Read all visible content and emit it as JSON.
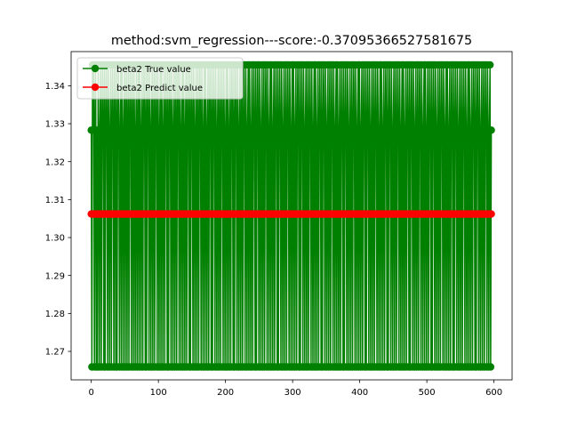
{
  "chart_data": {
    "type": "line",
    "title": "method:svm_regression---score:-0.37095366527581675",
    "xlabel": "",
    "ylabel": "",
    "xlim": [
      -30,
      627
    ],
    "ylim": [
      1.2625,
      1.349
    ],
    "x_ticks": [
      0,
      100,
      200,
      300,
      400,
      500,
      600
    ],
    "x_tick_labels": [
      "0",
      "100",
      "200",
      "300",
      "400",
      "500",
      "600"
    ],
    "y_ticks": [
      1.27,
      1.28,
      1.29,
      1.3,
      1.31,
      1.32,
      1.33,
      1.34
    ],
    "y_tick_labels": [
      "1.27",
      "1.28",
      "1.29",
      "1.30",
      "1.31",
      "1.32",
      "1.33",
      "1.34"
    ],
    "grid": false,
    "legend_position": "upper left",
    "true_levels": [
      1.2659,
      1.3283,
      1.3455
    ],
    "series": [
      {
        "name": "beta2 True value",
        "color": "#008000",
        "marker": "circle",
        "x_start": 0,
        "x_end": 596,
        "values": [
          1.3283,
          1.2659,
          1.3455,
          1.3283,
          1.3455,
          1.2659,
          1.3283,
          1.3455,
          1.2659,
          1.3283,
          1.2659,
          1.3455,
          1.3283,
          1.2659,
          1.3283,
          1.3455,
          1.2659,
          1.3283,
          1.3455,
          1.3283,
          1.2659,
          1.3455,
          1.2659,
          1.3283,
          1.3455,
          1.3283,
          1.2659,
          1.3455,
          1.3283,
          1.2659,
          1.3283,
          1.3455,
          1.2659,
          1.3283,
          1.3455,
          1.3283,
          1.2659,
          1.3455,
          1.3283,
          1.2659,
          1.3455,
          1.2659,
          1.3283,
          1.3455,
          1.3283,
          1.2659,
          1.3283,
          1.3455,
          1.2659,
          1.3455,
          1.3283,
          1.2659,
          1.3283,
          1.3455,
          1.2659,
          1.3283,
          1.3455,
          1.2659,
          1.3283,
          1.3455,
          1.2659,
          1.3283,
          1.3455,
          1.3283,
          1.2659,
          1.3455,
          1.3283,
          1.2659,
          1.3455,
          1.3283,
          1.2659,
          1.3283,
          1.3455,
          1.2659,
          1.3283,
          1.3455,
          1.2659,
          1.3455,
          1.3283,
          1.2659,
          1.3283,
          1.3455,
          1.2659,
          1.3283,
          1.3455,
          1.3283,
          1.2659,
          1.3455,
          1.2659,
          1.3283,
          1.3455,
          1.3283,
          1.2659,
          1.3455,
          1.3283,
          1.2659,
          1.3283,
          1.3455,
          1.2659,
          1.3283,
          1.3455,
          1.2659,
          1.3283,
          1.3455,
          1.3283,
          1.2659,
          1.3455,
          1.3283,
          1.2659,
          1.3283,
          1.3455,
          1.2659,
          1.3455,
          1.3283,
          1.2659,
          1.3283,
          1.3455,
          1.2659,
          1.3283,
          1.3455,
          1.3283,
          1.2659,
          1.3455,
          1.2659,
          1.3283,
          1.3455,
          1.3283,
          1.2659,
          1.3455,
          1.3283,
          1.2659,
          1.3283,
          1.3455,
          1.2659,
          1.3283,
          1.3455,
          1.2659,
          1.3283,
          1.3455,
          1.3283,
          1.2659,
          1.3455,
          1.3283,
          1.2659,
          1.3283,
          1.3455,
          1.2659,
          1.3455,
          1.3283,
          1.2659,
          1.3283,
          1.3455,
          1.2659,
          1.3283,
          1.3455,
          1.3283,
          1.2659,
          1.3455,
          1.2659,
          1.3283,
          1.3455,
          1.3283,
          1.2659,
          1.3455,
          1.3283,
          1.2659,
          1.3283,
          1.3455,
          1.2659,
          1.3283,
          1.3455,
          1.2659,
          1.3283,
          1.3455,
          1.3283,
          1.2659,
          1.3455,
          1.3283,
          1.2659,
          1.3283,
          1.3455,
          1.2659,
          1.3455,
          1.3283,
          1.2659,
          1.3283,
          1.3455,
          1.2659,
          1.3283,
          1.3455,
          1.3283,
          1.2659,
          1.3455,
          1.2659,
          1.3283,
          1.3455,
          1.3283,
          1.2659,
          1.3455,
          1.3283,
          1.2659,
          1.3283,
          1.3455,
          1.2659,
          1.3283,
          1.3455,
          1.2659,
          1.3283,
          1.3455,
          1.3283,
          1.2659,
          1.3455,
          1.3283,
          1.2659,
          1.3283,
          1.3455,
          1.2659,
          1.3455,
          1.3283,
          1.2659,
          1.3283,
          1.3455,
          1.2659,
          1.3283,
          1.3455,
          1.3283,
          1.2659,
          1.3455,
          1.2659,
          1.3283,
          1.3455,
          1.3283,
          1.2659,
          1.3455,
          1.3283,
          1.2659,
          1.3283,
          1.3455,
          1.2659,
          1.3283,
          1.3455,
          1.2659,
          1.3283,
          1.3455,
          1.3283,
          1.2659,
          1.3455,
          1.3283,
          1.2659,
          1.3283,
          1.3455,
          1.2659,
          1.3455,
          1.3283,
          1.2659,
          1.3283,
          1.3455,
          1.2659,
          1.3283,
          1.3455,
          1.3283,
          1.2659,
          1.3455,
          1.2659,
          1.3283,
          1.3455,
          1.3283,
          1.2659,
          1.3455,
          1.3283,
          1.2659,
          1.3283,
          1.3455,
          1.2659,
          1.3283,
          1.3455,
          1.2659,
          1.3283,
          1.3455,
          1.3283,
          1.2659,
          1.3455,
          1.3283,
          1.2659,
          1.3283,
          1.3455,
          1.2659,
          1.3455,
          1.3283,
          1.2659,
          1.3283,
          1.3455,
          1.2659,
          1.3283,
          1.3455,
          1.3283,
          1.2659,
          1.3455,
          1.2659,
          1.3283,
          1.3455,
          1.3283,
          1.2659,
          1.3455,
          1.3283,
          1.2659,
          1.3283,
          1.3455,
          1.2659,
          1.3283,
          1.3455,
          1.2659,
          1.3283,
          1.3455,
          1.3283,
          1.2659,
          1.3455,
          1.3283,
          1.2659,
          1.3283,
          1.3455,
          1.2659,
          1.3455,
          1.3283,
          1.2659,
          1.3283,
          1.3455,
          1.2659,
          1.3283,
          1.3455,
          1.3283,
          1.2659,
          1.3455,
          1.2659,
          1.3283,
          1.3455,
          1.3283,
          1.2659,
          1.3455,
          1.3283,
          1.2659,
          1.3283,
          1.3455,
          1.2659,
          1.3283,
          1.3455,
          1.2659,
          1.3283,
          1.3455,
          1.3283,
          1.2659,
          1.3455,
          1.3283,
          1.2659,
          1.3283,
          1.3455,
          1.2659,
          1.3455,
          1.3283,
          1.2659,
          1.3283,
          1.3455,
          1.2659,
          1.3283,
          1.3455,
          1.3283,
          1.2659,
          1.3455,
          1.2659,
          1.3283,
          1.3455,
          1.3283,
          1.2659,
          1.3455,
          1.3283,
          1.2659,
          1.3283,
          1.3455,
          1.2659,
          1.3283,
          1.3455,
          1.2659,
          1.3283,
          1.3455,
          1.3283,
          1.2659,
          1.3455,
          1.3283,
          1.2659,
          1.3283,
          1.3455,
          1.2659,
          1.3455,
          1.3283,
          1.2659,
          1.3283,
          1.3455,
          1.2659,
          1.3283,
          1.3455,
          1.3283,
          1.2659,
          1.3455,
          1.2659,
          1.3283,
          1.3455,
          1.3283,
          1.2659,
          1.3455,
          1.3283,
          1.2659,
          1.3283,
          1.3455,
          1.2659,
          1.3283,
          1.3455,
          1.2659,
          1.3283,
          1.3455,
          1.3283,
          1.2659,
          1.3455,
          1.3283,
          1.2659,
          1.3283,
          1.3455,
          1.2659,
          1.3455,
          1.3283,
          1.2659,
          1.3283,
          1.3455,
          1.2659,
          1.3283,
          1.3455,
          1.3283,
          1.2659,
          1.3455,
          1.2659,
          1.3283,
          1.3455,
          1.3283,
          1.2659,
          1.3455,
          1.3283,
          1.2659,
          1.3283,
          1.3455,
          1.2659,
          1.3283,
          1.3455,
          1.2659,
          1.3283,
          1.3455,
          1.3283,
          1.2659,
          1.3455,
          1.3283,
          1.2659,
          1.3283,
          1.3455,
          1.2659,
          1.3455,
          1.3283,
          1.2659,
          1.3283,
          1.3455,
          1.2659,
          1.3283,
          1.3455,
          1.3283,
          1.2659,
          1.3455,
          1.2659,
          1.3283,
          1.3455,
          1.3283,
          1.2659,
          1.3455,
          1.3283,
          1.2659,
          1.3283,
          1.3455,
          1.2659,
          1.3283,
          1.3455,
          1.2659,
          1.3283,
          1.3455,
          1.3283,
          1.2659,
          1.3455,
          1.3283,
          1.2659,
          1.3283,
          1.3455,
          1.2659,
          1.3455,
          1.3283,
          1.2659,
          1.3283,
          1.3455,
          1.2659,
          1.3283,
          1.3455,
          1.3283,
          1.2659,
          1.3455,
          1.2659,
          1.3283,
          1.3455,
          1.3283,
          1.2659,
          1.3455,
          1.3283,
          1.2659,
          1.3283,
          1.3455,
          1.2659,
          1.3283,
          1.3455,
          1.2659,
          1.3283,
          1.3455,
          1.3283,
          1.2659,
          1.3455,
          1.3283,
          1.2659,
          1.3283,
          1.3455,
          1.2659,
          1.3455,
          1.3283,
          1.2659,
          1.3283,
          1.3455,
          1.2659,
          1.3283,
          1.3455,
          1.3283,
          1.2659,
          1.3455,
          1.2659,
          1.3283,
          1.3455,
          1.3283,
          1.2659,
          1.3455,
          1.3283,
          1.2659,
          1.3283,
          1.3455,
          1.2659,
          1.3283,
          1.3455,
          1.2659,
          1.3283,
          1.3455,
          1.3283,
          1.2659,
          1.3455,
          1.3283,
          1.2659,
          1.3283,
          1.3455,
          1.2659,
          1.3455,
          1.3283,
          1.2659,
          1.3283,
          1.3455,
          1.2659,
          1.3283,
          1.3455,
          1.3283,
          1.2659,
          1.3455,
          1.2659,
          1.3283,
          1.3455,
          1.3283,
          1.2659,
          1.3455,
          1.3283,
          1.2659,
          1.3283,
          1.3455,
          1.2659,
          1.3283,
          1.3455,
          1.2659,
          1.3283,
          1.3455,
          1.3283,
          1.2659,
          1.3455,
          1.3283,
          1.2659,
          1.3283,
          1.3455,
          1.2659,
          1.3455,
          1.3283,
          1.2659,
          1.3283,
          1.3455,
          1.2659,
          1.3283,
          1.3455,
          1.3283,
          1.2659,
          1.3455,
          1.2659,
          1.3283,
          1.3455,
          1.3283,
          1.2659,
          1.3455,
          1.3283,
          1.2659,
          1.3283,
          1.3455,
          1.2659,
          1.3283,
          1.3455,
          1.2659,
          1.3283,
          1.3455,
          1.3283,
          1.2659,
          1.3455,
          1.3283,
          1.2659,
          1.3283,
          1.3455,
          1.2659,
          1.3283
        ]
      },
      {
        "name": "beta2 Predict value",
        "color": "#ff0000",
        "marker": "circle",
        "x_start": 0,
        "x_end": 596,
        "constant_value": 1.3062
      }
    ]
  }
}
